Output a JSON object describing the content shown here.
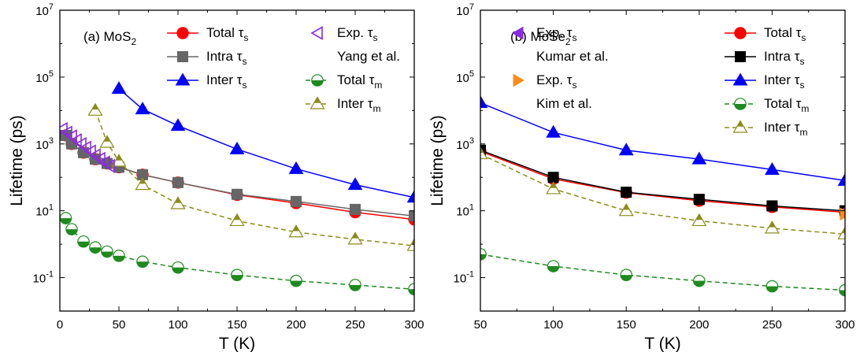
{
  "chart_data": [
    {
      "type": "line",
      "panel_label": "(a) MoS",
      "panel_label_sub": "2",
      "xlabel": "T (K)",
      "ylabel": "Lifetime (ps)",
      "xlim": [
        0,
        300
      ],
      "ylim_log10": [
        -2,
        7
      ],
      "x_ticks": [
        0,
        50,
        100,
        150,
        200,
        250,
        300
      ],
      "y_tick_exponents": [
        -1,
        1,
        3,
        5,
        7
      ],
      "y_scale": "log",
      "series": [
        {
          "name": "Total",
          "sub": "s",
          "color": "#ff0000",
          "marker": "circle",
          "dash": false,
          "x": [
            5,
            10,
            20,
            30,
            40,
            50,
            70,
            100,
            150,
            200,
            250,
            300
          ],
          "y": [
            1800,
            1000,
            550,
            350,
            260,
            200,
            120,
            70,
            30,
            17,
            9,
            5.5
          ]
        },
        {
          "name": "Intra",
          "sub": "s",
          "color": "#666666",
          "marker": "square",
          "dash": false,
          "x": [
            5,
            10,
            20,
            30,
            40,
            50,
            70,
            100,
            150,
            200,
            250,
            300
          ],
          "y": [
            1800,
            1000,
            550,
            350,
            260,
            200,
            120,
            70,
            31,
            19,
            11,
            7
          ]
        },
        {
          "name": "Inter",
          "sub": "s",
          "color": "#0000ff",
          "marker": "triangle",
          "dash": false,
          "x": [
            50,
            70,
            100,
            150,
            200,
            250,
            300
          ],
          "y": [
            45000,
            11000,
            3500,
            700,
            180,
            60,
            25
          ]
        },
        {
          "name": "Total",
          "sub": "m",
          "color": "#1e8a1e",
          "marker": "half-circle",
          "dash": true,
          "x": [
            5,
            10,
            20,
            30,
            40,
            50,
            70,
            100,
            150,
            200,
            250,
            300
          ],
          "y": [
            6,
            2.8,
            1.2,
            0.8,
            0.6,
            0.45,
            0.3,
            0.2,
            0.12,
            0.08,
            0.06,
            0.045
          ]
        },
        {
          "name": "Inter",
          "sub": "m",
          "color": "#8c8c1e",
          "marker": "half-triangle",
          "dash": true,
          "x": [
            30,
            40,
            50,
            70,
            100,
            150,
            200,
            250,
            300
          ],
          "y": [
            10000,
            1100,
            300,
            60,
            16,
            5,
            2.3,
            1.4,
            0.9
          ]
        },
        {
          "name": "Exp.",
          "sub": "s",
          "color": "#8a2be2",
          "marker": "open-left-triangle",
          "dash": false,
          "no_line": true,
          "x": [
            2,
            6,
            10,
            14,
            18,
            22,
            26,
            30,
            34,
            38,
            42
          ],
          "y": [
            2800,
            2200,
            1700,
            1300,
            1000,
            780,
            600,
            460,
            360,
            280,
            220
          ]
        }
      ],
      "legend": [
        {
          "text": "Total",
          "sub": "s",
          "series": 0
        },
        {
          "text": "Intra",
          "sub": "s",
          "series": 1
        },
        {
          "text": "Inter",
          "sub": "s",
          "series": 2
        },
        {
          "text": "Exp.",
          "sub": "s",
          "series": 5
        },
        {
          "text": "Yang et al.",
          "sub": "",
          "series": -1
        },
        {
          "text": "Total",
          "sub": "m",
          "series": 3
        },
        {
          "text": "Inter",
          "sub": "m",
          "series": 4
        }
      ]
    },
    {
      "type": "line",
      "panel_label": "(b) MoSe",
      "panel_label_sub": "2",
      "xlabel": "T (K)",
      "ylabel": "Lifetime (ps)",
      "xlim": [
        50,
        300
      ],
      "ylim_log10": [
        -2,
        7
      ],
      "x_ticks": [
        50,
        100,
        150,
        200,
        250,
        300
      ],
      "y_tick_exponents": [
        -1,
        1,
        3,
        5,
        7
      ],
      "y_scale": "log",
      "series": [
        {
          "name": "Total",
          "sub": "s",
          "color": "#ff0000",
          "marker": "circle",
          "dash": false,
          "x": [
            50,
            100,
            150,
            200,
            250,
            300
          ],
          "y": [
            600,
            90,
            35,
            20,
            13,
            9
          ]
        },
        {
          "name": "Intra",
          "sub": "s",
          "color": "#000000",
          "marker": "square",
          "dash": false,
          "x": [
            50,
            100,
            150,
            200,
            250,
            300
          ],
          "y": [
            650,
            100,
            36,
            22,
            14,
            10
          ]
        },
        {
          "name": "Inter",
          "sub": "s",
          "color": "#0000ff",
          "marker": "triangle",
          "dash": false,
          "x": [
            50,
            100,
            150,
            200,
            250,
            300
          ],
          "y": [
            17000,
            2200,
            650,
            350,
            170,
            80
          ]
        },
        {
          "name": "Total",
          "sub": "m",
          "color": "#1e8a1e",
          "marker": "half-circle",
          "dash": true,
          "x": [
            50,
            100,
            150,
            200,
            250,
            300
          ],
          "y": [
            0.5,
            0.22,
            0.12,
            0.08,
            0.055,
            0.042
          ]
        },
        {
          "name": "Inter",
          "sub": "m",
          "color": "#8c8c1e",
          "marker": "half-triangle",
          "dash": true,
          "x": [
            50,
            100,
            150,
            200,
            250,
            300
          ],
          "y": [
            500,
            45,
            10,
            5,
            3,
            2
          ]
        },
        {
          "name": "Exp.",
          "sub": "s",
          "color": "#8a2be2",
          "marker": "filled-left-triangle",
          "dash": false,
          "no_line": true,
          "x": [
            300
          ],
          "y": [
            10
          ]
        },
        {
          "name": "Exp.",
          "sub": "s",
          "color": "#ff8c1a",
          "marker": "filled-right-triangle",
          "dash": false,
          "no_line": true,
          "x": [
            300
          ],
          "y": [
            8
          ]
        }
      ],
      "legend": [
        {
          "text": "Exp.",
          "sub": "s",
          "series": 5
        },
        {
          "text": "Kumar et al.",
          "sub": "",
          "series": -1
        },
        {
          "text": "Exp.",
          "sub": "s",
          "series": 6
        },
        {
          "text": "Kim et al.",
          "sub": "",
          "series": -1
        },
        {
          "text": "Total",
          "sub": "s",
          "series": 0
        },
        {
          "text": "Intra",
          "sub": "s",
          "series": 1
        },
        {
          "text": "Inter",
          "sub": "s",
          "series": 2
        },
        {
          "text": "Total",
          "sub": "m",
          "series": 3
        },
        {
          "text": "Inter",
          "sub": "m",
          "series": 4
        }
      ]
    }
  ],
  "tau_symbol": "τ",
  "exp_base": "10"
}
